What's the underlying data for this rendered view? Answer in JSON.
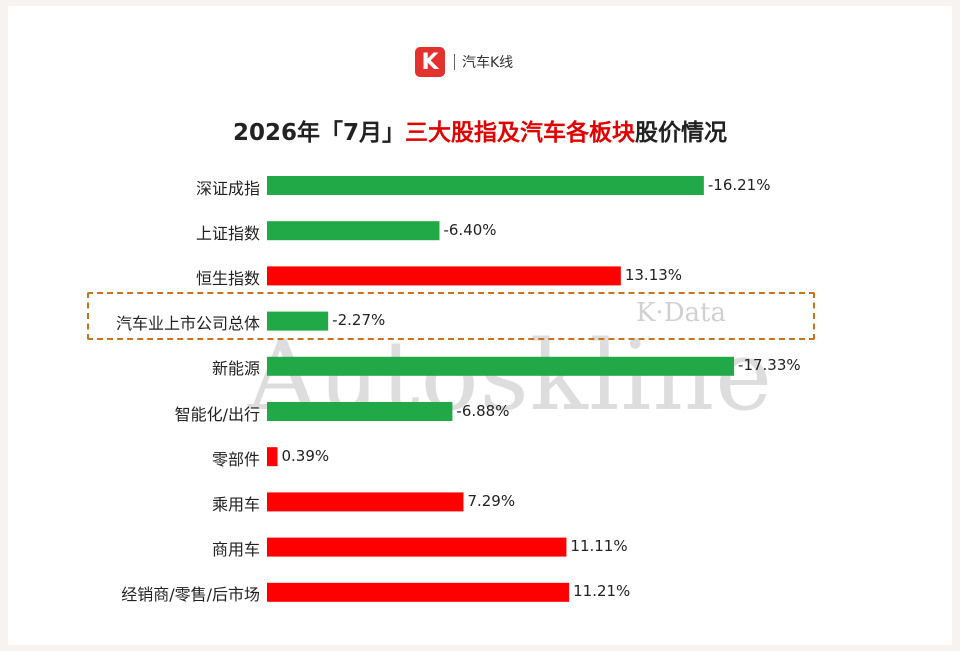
{
  "brand": {
    "logo_letter": "K",
    "name": "汽车K线"
  },
  "title": {
    "prefix": "2026年「7月」",
    "highlight": "三大股指及汽车各板块",
    "suffix": "股价情况"
  },
  "watermark": {
    "main": "Autoskline",
    "sub": "K·Data"
  },
  "colors": {
    "positive": "#ff0000",
    "negative": "#20a946",
    "highlight_border": "#c8731f",
    "title_highlight": "#e00000"
  },
  "chart_data": {
    "type": "bar",
    "orientation": "horizontal",
    "title": "2026年「7月」三大股指及汽车各板块股价情况",
    "categories": [
      "深证成指",
      "上证指数",
      "恒生指数",
      "汽车业上市公司总体",
      "新能源",
      "智能化/出行",
      "零部件",
      "乘用车",
      "商用车",
      "经销商/零售/后市场"
    ],
    "values": [
      -16.21,
      -6.4,
      13.13,
      -2.27,
      -17.33,
      -6.88,
      0.39,
      7.29,
      11.11,
      11.21
    ],
    "value_labels": [
      "-16.21%",
      "-6.40%",
      "13.13%",
      "-2.27%",
      "-17.33%",
      "-6.88%",
      "0.39%",
      "7.29%",
      "11.11%",
      "11.21%"
    ],
    "bar_length": "absolute value",
    "highlighted_category": "汽车业上市公司总体",
    "xlabel": "",
    "ylabel": "",
    "grid": false,
    "legend": "none"
  }
}
